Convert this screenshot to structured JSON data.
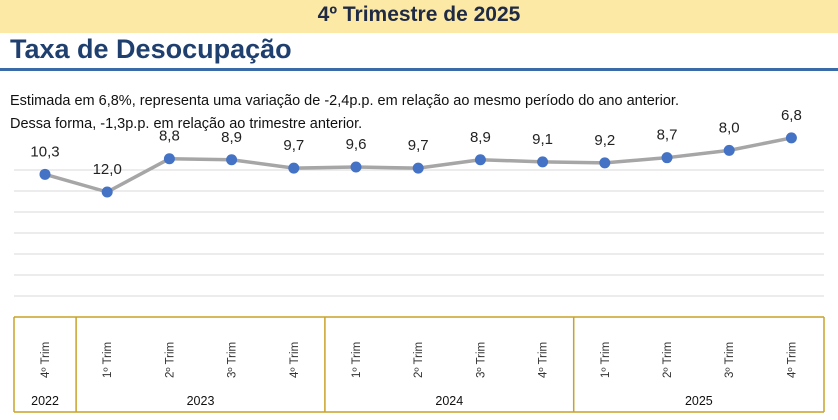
{
  "header": {
    "banner_title": "4º Trimestre de 2025"
  },
  "title": "Taxa de Desocupação",
  "description": {
    "line1": "Estimada em 6,8%, representa uma variação de -2,4p.p. em relação ao mesmo período do ano anterior.",
    "line2": "Dessa forma, -1,3p.p. em relação ao trimestre anterior."
  },
  "colors": {
    "banner": "#fde9a6",
    "title": "#1f3f6e",
    "rule": "#3a6aa8",
    "line": "#a6a6a6",
    "marker": "#4472c4",
    "axis_box": "#c9a227"
  },
  "chart_data": {
    "type": "line",
    "categories": [
      "4º Trim",
      "1º Trim",
      "2º Trim",
      "3º Trim",
      "4º Trim",
      "1º Trim",
      "2º Trim",
      "3º Trim",
      "4º Trim",
      "1º Trim",
      "2º Trim",
      "3º Trim",
      "4º Trim"
    ],
    "years": [
      {
        "label": "2022",
        "count": 1
      },
      {
        "label": "2023",
        "count": 4
      },
      {
        "label": "2024",
        "count": 4
      },
      {
        "label": "2025",
        "count": 4
      }
    ],
    "series": [
      {
        "values": [
          10.3,
          12.0,
          8.8,
          8.9,
          9.7,
          9.6,
          9.7,
          8.9,
          9.1,
          9.2,
          8.7,
          8.0,
          6.8
        ],
        "labels": [
          "10,3",
          "12,0",
          "8,8",
          "8,9",
          "9,7",
          "9,6",
          "9,7",
          "8,9",
          "9,1",
          "9,2",
          "8,7",
          "8,0",
          "6,8"
        ]
      }
    ],
    "grid": true,
    "legend": "none"
  }
}
